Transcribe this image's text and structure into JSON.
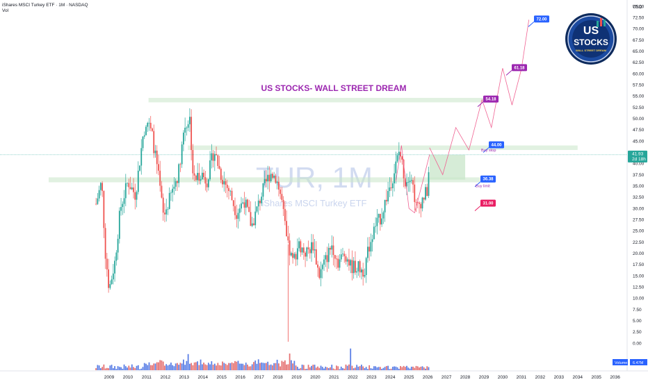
{
  "header": {
    "title": "iShares MSCI Turkey ETF · 1M · NASDAQ",
    "vol_label": "Vol"
  },
  "watermark": {
    "ticker": "TUR, 1M",
    "name": "iShares MSCI Turkey ETF"
  },
  "headline": "US STOCKS- WALL STREET DREAM",
  "logo": {
    "line1": "US",
    "line2": "STOCKS",
    "line3": "WALL STREET DREAM"
  },
  "colors": {
    "up": "#26a69a",
    "down": "#ef5350",
    "zone": "#c8e6c9",
    "projection": "#f06292",
    "target_blue": "#2962ff",
    "target_purple": "#9c27b0",
    "target_red": "#e91e63",
    "price_tag": "#26a69a",
    "volume_tag": "#2962ff"
  },
  "price_axis": {
    "currency": "USD",
    "ticks": [
      "75.00",
      "72.50",
      "70.00",
      "67.50",
      "65.00",
      "62.50",
      "60.00",
      "57.50",
      "55.00",
      "52.50",
      "50.00",
      "47.50",
      "45.00",
      "42.50",
      "40.00",
      "37.50",
      "35.00",
      "32.50",
      "30.00",
      "27.50",
      "25.00",
      "22.50",
      "20.00",
      "17.50",
      "15.00",
      "12.50",
      "10.00",
      "7.50",
      "5.00",
      "2.50",
      "0.00"
    ],
    "current_price": "41.93",
    "countdown": "2d 18h",
    "volume_label": "Volume",
    "volume_value": "6.47M"
  },
  "time_axis": {
    "ticks": [
      "2009",
      "2010",
      "2011",
      "2012",
      "2013",
      "2014",
      "2015",
      "2016",
      "2017",
      "2018",
      "2019",
      "2020",
      "2021",
      "2022",
      "2023",
      "2024",
      "2025",
      "2026",
      "2027",
      "2028",
      "2029",
      "2030",
      "2031",
      "2032",
      "2033",
      "2034",
      "2035",
      "2036"
    ]
  },
  "targets": [
    {
      "label": "72.00",
      "price": 72.0,
      "style": "blue"
    },
    {
      "label": "61.18",
      "price": 61.18,
      "style": "purple"
    },
    {
      "label": "54.18",
      "price": 54.18,
      "style": "purple"
    },
    {
      "label": "44.00",
      "price": 44.0,
      "style": "blue"
    },
    {
      "label": "36.38",
      "price": 36.38,
      "style": "blue"
    },
    {
      "label": "31.00",
      "price": 31.0,
      "style": "red"
    }
  ],
  "annotations": {
    "buy_stop": "Buy stop",
    "buy_limit": "Buy limit"
  },
  "chart_data": {
    "type": "candlestick",
    "interval": "monthly",
    "y_range": [
      0,
      76
    ],
    "x_range": [
      2008.2,
      2036.5
    ],
    "current_price": 41.93,
    "price_path": [
      [
        2008.3,
        31
      ],
      [
        2008.6,
        36
      ],
      [
        2008.8,
        20
      ],
      [
        2009.0,
        12
      ],
      [
        2009.3,
        18
      ],
      [
        2009.6,
        30
      ],
      [
        2010.0,
        36
      ],
      [
        2010.4,
        33
      ],
      [
        2010.8,
        46
      ],
      [
        2011.0,
        50
      ],
      [
        2011.3,
        46
      ],
      [
        2011.6,
        38
      ],
      [
        2011.9,
        28
      ],
      [
        2012.3,
        33
      ],
      [
        2012.7,
        38
      ],
      [
        2013.0,
        48
      ],
      [
        2013.3,
        50
      ],
      [
        2013.5,
        36
      ],
      [
        2013.9,
        38
      ],
      [
        2014.2,
        36
      ],
      [
        2014.6,
        43
      ],
      [
        2015.0,
        37
      ],
      [
        2015.4,
        34
      ],
      [
        2015.8,
        29
      ],
      [
        2016.2,
        32
      ],
      [
        2016.6,
        26
      ],
      [
        2016.9,
        30
      ],
      [
        2017.2,
        34
      ],
      [
        2017.6,
        38
      ],
      [
        2017.9,
        37
      ],
      [
        2018.2,
        32
      ],
      [
        2018.5,
        22
      ],
      [
        2018.8,
        18
      ],
      [
        2019.1,
        22
      ],
      [
        2019.5,
        20
      ],
      [
        2019.9,
        22
      ],
      [
        2020.2,
        15
      ],
      [
        2020.5,
        18
      ],
      [
        2020.9,
        22
      ],
      [
        2021.2,
        18
      ],
      [
        2021.6,
        20
      ],
      [
        2021.9,
        17
      ],
      [
        2022.2,
        17
      ],
      [
        2022.6,
        16
      ],
      [
        2022.9,
        22
      ],
      [
        2023.2,
        26
      ],
      [
        2023.5,
        28
      ],
      [
        2023.9,
        34
      ],
      [
        2024.2,
        38
      ],
      [
        2024.5,
        43
      ],
      [
        2024.8,
        36
      ],
      [
        2025.1,
        38
      ],
      [
        2025.4,
        30
      ],
      [
        2025.7,
        32
      ],
      [
        2026.0,
        34
      ],
      [
        2026.1,
        41.93
      ]
    ],
    "volume_range": [
      0,
      4.5
    ],
    "projection_path": [
      [
        2026.1,
        43.5
      ],
      [
        2026.8,
        37.5
      ],
      [
        2027.5,
        48
      ],
      [
        2028.2,
        43
      ],
      [
        2028.9,
        54.2
      ],
      [
        2029.4,
        48
      ],
      [
        2030.0,
        61.2
      ],
      [
        2030.5,
        53
      ],
      [
        2031.0,
        61
      ],
      [
        2031.4,
        72
      ]
    ],
    "zones": [
      {
        "name": "upper-resistance",
        "x": [
          2011.1,
          2029.0
        ],
        "y": [
          53.6,
          54.6
        ]
      },
      {
        "name": "breakout-zone",
        "x": [
          2013.2,
          2034.0
        ],
        "y": [
          43.0,
          44.0
        ]
      },
      {
        "name": "support-zone",
        "x": [
          2008.2,
          2028.8
        ],
        "y": [
          35.8,
          36.9
        ]
      },
      {
        "name": "entry-box",
        "x": [
          2026.1,
          2028.0
        ],
        "y": [
          36.4,
          41.9
        ]
      }
    ],
    "headline": "US STOCKS- WALL STREET DREAM"
  }
}
